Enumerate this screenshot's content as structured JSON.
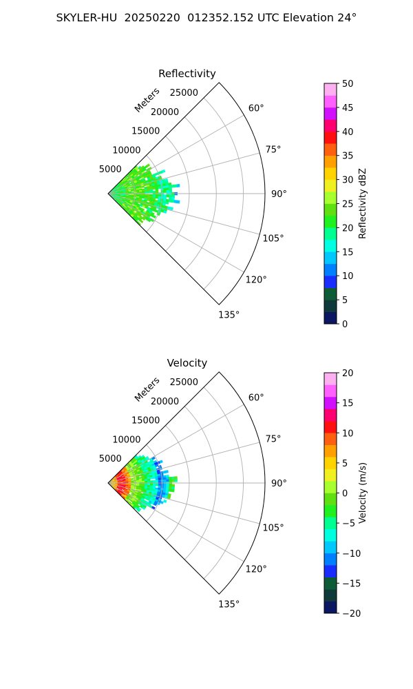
{
  "figure": {
    "title": "SKYLER-HU  20250220  012352.152 UTC Elevation 24°"
  },
  "chart_data": [
    {
      "type": "heatmap",
      "projection": "polar-sector",
      "title": "Reflectivity",
      "radial_label": "Meters",
      "radial_ticks": [
        "5000",
        "10000",
        "15000",
        "20000",
        "25000"
      ],
      "radial_tick_values": [
        5000,
        10000,
        15000,
        20000,
        25000
      ],
      "r_max": 29000,
      "azimuth_ticks": [
        "60°",
        "75°",
        "90°",
        "105°",
        "120°",
        "135°"
      ],
      "azimuth_tick_values": [
        60,
        75,
        90,
        105,
        120,
        135
      ],
      "azimuth_range": [
        45,
        135
      ],
      "grid": true,
      "data_extent": {
        "azimuth_deg": [
          45,
          135
        ],
        "range_m": [
          0,
          13500
        ]
      },
      "field_description_by_range_m": [
        {
          "range_m": [
            0,
            3000
          ],
          "value_dbz": 20
        },
        {
          "range_m": [
            3000,
            9000
          ],
          "value_dbz": 23
        },
        {
          "range_m": [
            9000,
            12000
          ],
          "value_dbz": 19
        },
        {
          "range_m": [
            12000,
            13500
          ],
          "value_dbz": 15
        }
      ],
      "colorbar": {
        "label": "Reflectivity dBZ",
        "ticks": [
          "0",
          "5",
          "10",
          "15",
          "20",
          "25",
          "30",
          "35",
          "40",
          "45",
          "50"
        ],
        "min": 0,
        "max": 50,
        "colors": [
          "#0b1760",
          "#103a3a",
          "#0d5c35",
          "#1a2dff",
          "#0080ff",
          "#00c8ff",
          "#00ffe0",
          "#00ff90",
          "#20f020",
          "#60e010",
          "#a8ff30",
          "#f0f020",
          "#ffd200",
          "#ffa000",
          "#ff6010",
          "#ff1010",
          "#ff0070",
          "#d010ff",
          "#ff60ff",
          "#ffb0f0"
        ]
      }
    },
    {
      "type": "heatmap",
      "projection": "polar-sector",
      "title": "Velocity",
      "radial_label": "Meters",
      "radial_ticks": [
        "5000",
        "10000",
        "15000",
        "20000",
        "25000"
      ],
      "radial_tick_values": [
        5000,
        10000,
        15000,
        20000,
        25000
      ],
      "r_max": 29000,
      "azimuth_ticks": [
        "60°",
        "75°",
        "90°",
        "105°",
        "120°",
        "135°"
      ],
      "azimuth_tick_values": [
        60,
        75,
        90,
        105,
        120,
        135
      ],
      "azimuth_range": [
        45,
        135
      ],
      "grid": true,
      "data_extent": {
        "azimuth_deg": [
          45,
          135
        ],
        "range_m": [
          0,
          13000
        ]
      },
      "field_description_by_range_m": [
        {
          "range_m": [
            0,
            1500
          ],
          "value_ms": 5
        },
        {
          "range_m": [
            1500,
            4000
          ],
          "value_ms": 11
        },
        {
          "range_m": [
            4000,
            6500
          ],
          "value_ms": 0
        },
        {
          "range_m": [
            6500,
            9000
          ],
          "value_ms": -5
        },
        {
          "range_m": [
            9000,
            11000
          ],
          "value_ms": -11
        },
        {
          "range_m": [
            11000,
            13000
          ],
          "value_ms": -3
        }
      ],
      "colorbar": {
        "label": "Velocity (m/s)",
        "ticks": [
          "−20",
          "−15",
          "−10",
          "−5",
          "0",
          "5",
          "10",
          "15",
          "20"
        ],
        "min": -20,
        "max": 20,
        "colors": [
          "#0b1760",
          "#103a3a",
          "#0d5c35",
          "#1a2dff",
          "#0080ff",
          "#00c8ff",
          "#00ffe0",
          "#00ff90",
          "#20f020",
          "#60e010",
          "#a8ff30",
          "#f0f020",
          "#ffd200",
          "#ffa000",
          "#ff6010",
          "#ff1010",
          "#ff0070",
          "#d010ff",
          "#ff60ff",
          "#ffb0f0"
        ]
      }
    }
  ]
}
